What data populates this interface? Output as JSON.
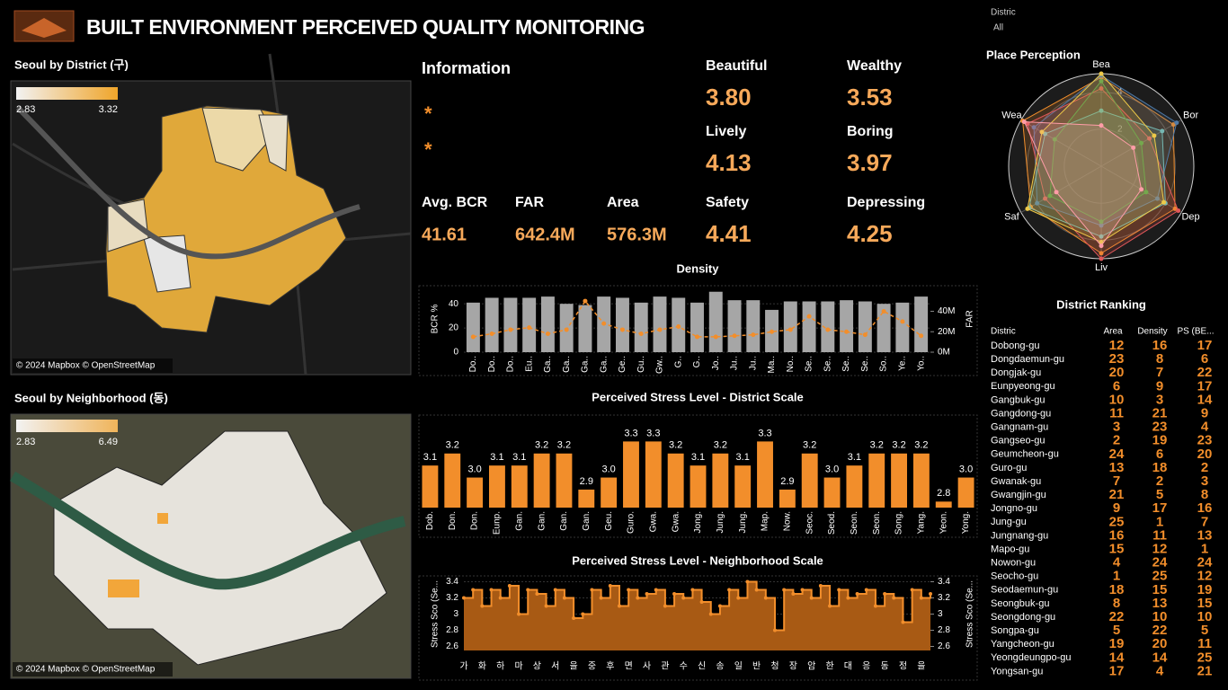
{
  "header": {
    "title": "BUILT ENVIRONMENT PERCEIVED QUALITY MONITORING"
  },
  "filter": {
    "label": "Distric",
    "value": "All"
  },
  "maps": [
    {
      "title": "Seoul by District (구)",
      "legend_min": "2.83",
      "legend_max": "3.32",
      "attribution": "© 2024 Mapbox © OpenStreetMap"
    },
    {
      "title": "Seoul by Neighborhood (동)",
      "legend_min": "2.83",
      "legend_max": "6.49",
      "attribution": "© 2024 Mapbox © OpenStreetMap"
    }
  ],
  "info": {
    "title": "Information",
    "bullets": [
      "*",
      "*"
    ]
  },
  "kpis": [
    {
      "label": "Beautiful",
      "value": "3.80"
    },
    {
      "label": "Wealthy",
      "value": "3.53"
    },
    {
      "label": "Lively",
      "value": "4.13"
    },
    {
      "label": "Boring",
      "value": "3.97"
    },
    {
      "label": "Safety",
      "value": "4.41"
    },
    {
      "label": "Depressing",
      "value": "4.25"
    }
  ],
  "metrics": [
    {
      "label": "Avg. BCR",
      "value": "41.61"
    },
    {
      "label": "FAR",
      "value": "642.4M"
    },
    {
      "label": "Area",
      "value": "576.3M"
    }
  ],
  "chart_data": [
    {
      "type": "bar",
      "title": "Density",
      "ylabel": "BCR %",
      "y2label": "FAR",
      "categories": [
        "Do..",
        "Do..",
        "Do..",
        "Eu..",
        "Ga..",
        "Ga..",
        "Ga..",
        "Ga..",
        "Ge..",
        "Gu..",
        "Gw..",
        "G..",
        "G..",
        "Jo..",
        "Ju..",
        "Ju..",
        "Ma..",
        "No..",
        "Se..",
        "Se..",
        "Se..",
        "Se..",
        "So..",
        "Ye..",
        "Yo.."
      ],
      "series": [
        {
          "color": "#a6a6a6",
          "values": [
            41,
            45,
            45,
            45,
            46,
            40,
            39,
            46,
            45,
            41,
            46,
            45,
            41,
            50,
            43,
            43,
            35,
            42,
            42,
            42,
            43,
            42,
            40,
            41,
            46
          ]
        },
        {
          "color": "#f28e2b",
          "axis": "y2",
          "mark": "line",
          "values": [
            15000000,
            18000000,
            22000000,
            24000000,
            18000000,
            22000000,
            50000000,
            28000000,
            22000000,
            18000000,
            22000000,
            25000000,
            15000000,
            15000000,
            16000000,
            17000000,
            20000000,
            22000000,
            35000000,
            22000000,
            20000000,
            17000000,
            40000000,
            30000000,
            16000000
          ]
        }
      ],
      "ylim": [
        0,
        55
      ],
      "yticks": [
        0,
        20,
        40
      ],
      "y2lim": [
        0,
        65000000
      ],
      "y2ticks": [
        {
          "value": 0,
          "label": "0M"
        },
        {
          "value": 20000000,
          "label": "20M"
        },
        {
          "value": 40000000,
          "label": "40M"
        }
      ]
    },
    {
      "type": "bar",
      "title": "Perceived Stress Level - District Scale",
      "categories": [
        "Dob.",
        "Don.",
        "Don.",
        "Eunp.",
        "Gan.",
        "Gan.",
        "Gan.",
        "Gan.",
        "Geu.",
        "Guro.",
        "Gwa.",
        "Gwa.",
        "Jong.",
        "Jung.",
        "Jung.",
        "Map.",
        "Now.",
        "Seoc.",
        "Seod.",
        "Seon.",
        "Seon.",
        "Song.",
        "Yang.",
        "Yeon.",
        "Yong."
      ],
      "series": [
        {
          "color": "#f28e2b",
          "values": [
            3.1,
            3.2,
            3.0,
            3.1,
            3.1,
            3.2,
            3.2,
            2.9,
            3.0,
            3.3,
            3.3,
            3.2,
            3.1,
            3.2,
            3.1,
            3.3,
            2.9,
            3.2,
            3.0,
            3.1,
            3.2,
            3.2,
            3.2,
            2.8,
            3.0
          ],
          "value_labels": [
            "3.1",
            "3.2",
            "3.0",
            "3.1",
            "3.1",
            "3.2",
            "3.2",
            "2.9",
            "3.0",
            "3.3",
            "3.3",
            "3.2",
            "3.1",
            "3.2",
            "3.1",
            "3.3",
            "2.9",
            "3.2",
            "3.0",
            "3.1",
            "3.2",
            "3.2",
            "3.2",
            "2.8",
            "3.0"
          ]
        }
      ],
      "ylim": [
        2.75,
        3.4
      ]
    },
    {
      "type": "area",
      "title": "Perceived Stress Level - Neighborhood Scale",
      "ylabel": "Stress Sco (Se...",
      "y2label": "Stress Sco (Se...",
      "categories": [
        "가",
        null,
        "화",
        null,
        "하",
        null,
        "마",
        null,
        "상",
        null,
        "서",
        null,
        "을",
        null,
        "중",
        null,
        "후",
        null,
        "면",
        null,
        "사",
        null,
        "관",
        null,
        "수",
        null,
        "신",
        null,
        "송",
        null,
        "일",
        null,
        "반",
        null,
        "청",
        null,
        "장",
        null,
        "암",
        null,
        "한",
        null,
        "대",
        null,
        "응",
        null,
        "동",
        null,
        "정",
        null,
        "을",
        null
      ],
      "series": [
        {
          "color": "#f28e2b",
          "fill": "#a85a14",
          "values": [
            3.2,
            3.3,
            3.1,
            3.3,
            3.2,
            3.35,
            3.0,
            3.3,
            3.25,
            3.1,
            3.3,
            3.2,
            2.95,
            3.0,
            3.3,
            3.2,
            3.35,
            3.1,
            3.3,
            3.2,
            3.25,
            3.3,
            3.1,
            3.25,
            3.2,
            3.3,
            3.15,
            3.0,
            3.1,
            3.3,
            3.2,
            3.4,
            3.3,
            3.2,
            2.8,
            3.3,
            3.25,
            3.3,
            3.2,
            3.35,
            3.1,
            3.3,
            3.2,
            3.25,
            3.3,
            3.1,
            3.25,
            3.2,
            2.9,
            3.3,
            3.2,
            3.25
          ]
        }
      ],
      "ylim": [
        2.55,
        3.45
      ],
      "yticks": [
        2.6,
        2.8,
        3,
        3.2,
        3.4
      ],
      "y2lim": [
        2.55,
        3.45
      ],
      "y2ticks": [
        2.6,
        2.8,
        3,
        3.2,
        3.4
      ]
    },
    {
      "type": "radar",
      "title": "Place Perception",
      "axes": [
        "Bea",
        "Bor",
        "Dep",
        "Liv",
        "Saf",
        "Wea"
      ],
      "rlim": [
        0,
        5
      ],
      "rticks": [
        2,
        4
      ],
      "series": [
        {
          "color": "#f28e2b",
          "values": [
            4.8,
            4.5,
            4.6,
            4.7,
            4.4,
            4.9
          ]
        },
        {
          "color": "#4e79a7",
          "values": [
            4.9,
            4.7,
            3.5,
            3.2,
            4.0,
            4.2
          ]
        },
        {
          "color": "#e15759",
          "values": [
            4.2,
            3.0,
            4.8,
            5.0,
            3.5,
            4.6
          ]
        },
        {
          "color": "#76b7b2",
          "values": [
            3.0,
            3.8,
            4.0,
            3.8,
            4.5,
            3.5
          ]
        },
        {
          "color": "#59a14f",
          "values": [
            4.6,
            2.5,
            2.8,
            3.0,
            3.2,
            2.9
          ]
        },
        {
          "color": "#edc948",
          "values": [
            5.0,
            3.3,
            3.9,
            4.1,
            4.6,
            3.7
          ]
        },
        {
          "color": "#ff9da7",
          "values": [
            2.2,
            2.0,
            2.5,
            4.3,
            2.8,
            4.8
          ]
        }
      ]
    }
  ],
  "ranking": {
    "title": "District Ranking",
    "columns": [
      "Distric",
      "Area",
      "Density",
      "PS (BE..."
    ],
    "rows": [
      [
        "Dobong-gu",
        12,
        16,
        17
      ],
      [
        "Dongdaemun-gu",
        23,
        8,
        6
      ],
      [
        "Dongjak-gu",
        20,
        7,
        22
      ],
      [
        "Eunpyeong-gu",
        6,
        9,
        17
      ],
      [
        "Gangbuk-gu",
        10,
        3,
        14
      ],
      [
        "Gangdong-gu",
        11,
        21,
        9
      ],
      [
        "Gangnam-gu",
        3,
        23,
        4
      ],
      [
        "Gangseo-gu",
        2,
        19,
        23
      ],
      [
        "Geumcheon-gu",
        24,
        6,
        20
      ],
      [
        "Guro-gu",
        13,
        18,
        2
      ],
      [
        "Gwanak-gu",
        7,
        2,
        3
      ],
      [
        "Gwangjin-gu",
        21,
        5,
        8
      ],
      [
        "Jongno-gu",
        9,
        17,
        16
      ],
      [
        "Jung-gu",
        25,
        1,
        7
      ],
      [
        "Jungnang-gu",
        16,
        11,
        13
      ],
      [
        "Mapo-gu",
        15,
        12,
        1
      ],
      [
        "Nowon-gu",
        4,
        24,
        24
      ],
      [
        "Seocho-gu",
        1,
        25,
        12
      ],
      [
        "Seodaemun-gu",
        18,
        15,
        19
      ],
      [
        "Seongbuk-gu",
        8,
        13,
        15
      ],
      [
        "Seongdong-gu",
        22,
        10,
        10
      ],
      [
        "Songpa-gu",
        5,
        22,
        5
      ],
      [
        "Yangcheon-gu",
        19,
        20,
        11
      ],
      [
        "Yeongdeungpo-gu",
        14,
        14,
        25
      ],
      [
        "Yongsan-gu",
        17,
        4,
        21
      ]
    ]
  }
}
